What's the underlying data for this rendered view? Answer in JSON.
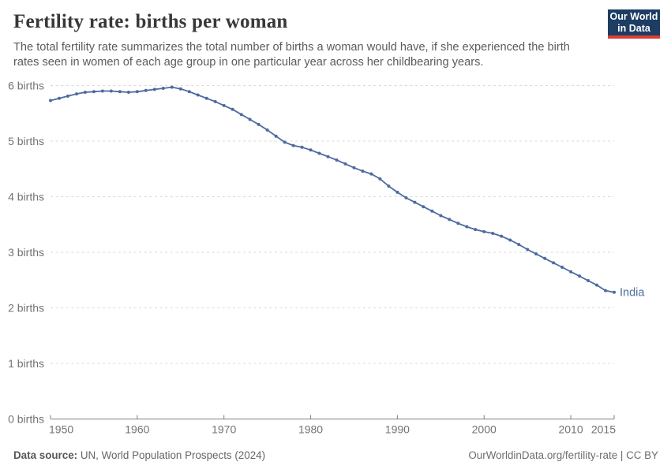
{
  "header": {
    "title": "Fertility rate: births per woman",
    "subtitle": "The total fertility rate summarizes the total number of births a woman would have, if she experienced the birth rates seen in women of each age group in one particular year across her childbearing years.",
    "logo": {
      "line1": "Our World",
      "line2": "in Data",
      "bg_color": "#1d3d63",
      "accent_color": "#dc3e31"
    }
  },
  "chart_data": {
    "type": "line",
    "title": "Fertility rate: births per woman",
    "xlabel": "",
    "ylabel": "births per woman",
    "xlim": [
      1950,
      2015
    ],
    "ylim": [
      0,
      6
    ],
    "grid": "horizontal-dashed",
    "x_ticks": [
      1950,
      1960,
      1970,
      1980,
      1990,
      2000,
      2010,
      2015
    ],
    "y_ticks": [
      {
        "value": 0,
        "label": "0 births"
      },
      {
        "value": 1,
        "label": "1 births"
      },
      {
        "value": 2,
        "label": "2 births"
      },
      {
        "value": 3,
        "label": "3 births"
      },
      {
        "value": 4,
        "label": "4 births"
      },
      {
        "value": 5,
        "label": "5 births"
      },
      {
        "value": 6,
        "label": "6 births"
      }
    ],
    "series": [
      {
        "name": "India",
        "color": "#4c6ba0",
        "end_label": "India",
        "x": [
          1950,
          1951,
          1952,
          1953,
          1954,
          1955,
          1956,
          1957,
          1958,
          1959,
          1960,
          1961,
          1962,
          1963,
          1964,
          1965,
          1966,
          1967,
          1968,
          1969,
          1970,
          1971,
          1972,
          1973,
          1974,
          1975,
          1976,
          1977,
          1978,
          1979,
          1980,
          1981,
          1982,
          1983,
          1984,
          1985,
          1986,
          1987,
          1988,
          1989,
          1990,
          1991,
          1992,
          1993,
          1994,
          1995,
          1996,
          1997,
          1998,
          1999,
          2000,
          2001,
          2002,
          2003,
          2004,
          2005,
          2006,
          2007,
          2008,
          2009,
          2010,
          2011,
          2012,
          2013,
          2014,
          2015
        ],
        "values": [
          5.73,
          5.77,
          5.81,
          5.85,
          5.88,
          5.89,
          5.9,
          5.9,
          5.89,
          5.88,
          5.89,
          5.91,
          5.93,
          5.95,
          5.97,
          5.94,
          5.89,
          5.83,
          5.77,
          5.71,
          5.64,
          5.57,
          5.48,
          5.39,
          5.3,
          5.2,
          5.09,
          4.98,
          4.92,
          4.89,
          4.84,
          4.78,
          4.72,
          4.66,
          4.59,
          4.52,
          4.46,
          4.41,
          4.32,
          4.19,
          4.08,
          3.98,
          3.9,
          3.82,
          3.74,
          3.66,
          3.59,
          3.52,
          3.46,
          3.41,
          3.37,
          3.34,
          3.29,
          3.22,
          3.14,
          3.05,
          2.97,
          2.89,
          2.81,
          2.73,
          2.65,
          2.57,
          2.49,
          2.41,
          2.31,
          2.28
        ]
      }
    ],
    "style": {
      "grid_color": "#dadada",
      "axis_color": "#7f7f7f",
      "tick_label_color": "#737373"
    }
  },
  "footer": {
    "source_label": "Data source:",
    "source_value": " UN, World Population Prospects (2024)",
    "link": "OurWorldinData.org/fertility-rate | CC BY"
  }
}
